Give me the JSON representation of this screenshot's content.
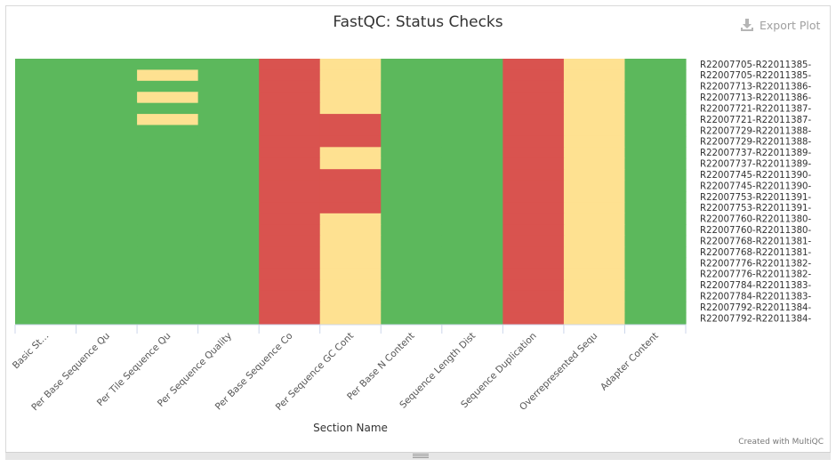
{
  "export_label": "Export Plot",
  "credit": "Created with MultiQC",
  "colors": {
    "pass": "#5cb85c",
    "warn": "#fee191",
    "fail": "#d9534f"
  },
  "chart_data": {
    "type": "heatmap",
    "title": "FastQC: Status Checks",
    "xlabel": "Section Name",
    "ylabel": "",
    "categories": [
      "Basic St…",
      "Per Base Sequence Qu",
      "Per Tile Sequence Qu",
      "Per Sequence Quality",
      "Per Base Sequence Co",
      "Per Sequence GC Cont",
      "Per Base N Content",
      "Sequence Length Dist",
      "Sequence Duplication",
      "Overrepresented Sequ",
      "Adapter Content"
    ],
    "samples": [
      "R22007705-R22011385-",
      "R22007705-R22011385-",
      "R22007713-R22011386-",
      "R22007713-R22011386-",
      "R22007721-R22011387-",
      "R22007721-R22011387-",
      "R22007729-R22011388-",
      "R22007729-R22011388-",
      "R22007737-R22011389-",
      "R22007737-R22011389-",
      "R22007745-R22011390-",
      "R22007745-R22011390-",
      "R22007753-R22011391-",
      "R22007753-R22011391-",
      "R22007760-R22011380-",
      "R22007760-R22011380-",
      "R22007768-R22011381-",
      "R22007768-R22011381-",
      "R22007776-R22011382-",
      "R22007776-R22011382-",
      "R22007784-R22011383-",
      "R22007784-R22011383-",
      "R22007792-R22011384-",
      "R22007792-R22011384-"
    ],
    "value_scale": {
      "pass": 1,
      "warn": 0.5,
      "fail": 0.25
    },
    "values": [
      [
        1,
        1,
        1,
        1,
        0.25,
        0.5,
        1,
        1,
        0.25,
        0.5,
        1
      ],
      [
        1,
        1,
        0.5,
        1,
        0.25,
        0.5,
        1,
        1,
        0.25,
        0.5,
        1
      ],
      [
        1,
        1,
        1,
        1,
        0.25,
        0.5,
        1,
        1,
        0.25,
        0.5,
        1
      ],
      [
        1,
        1,
        0.5,
        1,
        0.25,
        0.5,
        1,
        1,
        0.25,
        0.5,
        1
      ],
      [
        1,
        1,
        1,
        1,
        0.25,
        0.5,
        1,
        1,
        0.25,
        0.5,
        1
      ],
      [
        1,
        1,
        0.5,
        1,
        0.25,
        0.25,
        1,
        1,
        0.25,
        0.5,
        1
      ],
      [
        1,
        1,
        1,
        1,
        0.25,
        0.25,
        1,
        1,
        0.25,
        0.5,
        1
      ],
      [
        1,
        1,
        1,
        1,
        0.25,
        0.25,
        1,
        1,
        0.25,
        0.5,
        1
      ],
      [
        1,
        1,
        1,
        1,
        0.25,
        0.5,
        1,
        1,
        0.25,
        0.5,
        1
      ],
      [
        1,
        1,
        1,
        1,
        0.25,
        0.5,
        1,
        1,
        0.25,
        0.5,
        1
      ],
      [
        1,
        1,
        1,
        1,
        0.25,
        0.25,
        1,
        1,
        0.25,
        0.5,
        1
      ],
      [
        1,
        1,
        1,
        1,
        0.25,
        0.25,
        1,
        1,
        0.25,
        0.5,
        1
      ],
      [
        1,
        1,
        1,
        1,
        0.25,
        0.25,
        1,
        1,
        0.25,
        0.5,
        1
      ],
      [
        1,
        1,
        1,
        1,
        0.25,
        0.25,
        1,
        1,
        0.25,
        0.5,
        1
      ],
      [
        1,
        1,
        1,
        1,
        0.25,
        0.5,
        1,
        1,
        0.25,
        0.5,
        1
      ],
      [
        1,
        1,
        1,
        1,
        0.25,
        0.5,
        1,
        1,
        0.25,
        0.5,
        1
      ],
      [
        1,
        1,
        1,
        1,
        0.25,
        0.5,
        1,
        1,
        0.25,
        0.5,
        1
      ],
      [
        1,
        1,
        1,
        1,
        0.25,
        0.5,
        1,
        1,
        0.25,
        0.5,
        1
      ],
      [
        1,
        1,
        1,
        1,
        0.25,
        0.5,
        1,
        1,
        0.25,
        0.5,
        1
      ],
      [
        1,
        1,
        1,
        1,
        0.25,
        0.5,
        1,
        1,
        0.25,
        0.5,
        1
      ],
      [
        1,
        1,
        1,
        1,
        0.25,
        0.5,
        1,
        1,
        0.25,
        0.5,
        1
      ],
      [
        1,
        1,
        1,
        1,
        0.25,
        0.5,
        1,
        1,
        0.25,
        0.5,
        1
      ],
      [
        1,
        1,
        1,
        1,
        0.25,
        0.5,
        1,
        1,
        0.25,
        0.5,
        1
      ],
      [
        1,
        1,
        1,
        1,
        0.25,
        0.5,
        1,
        1,
        0.25,
        0.5,
        1
      ]
    ]
  }
}
